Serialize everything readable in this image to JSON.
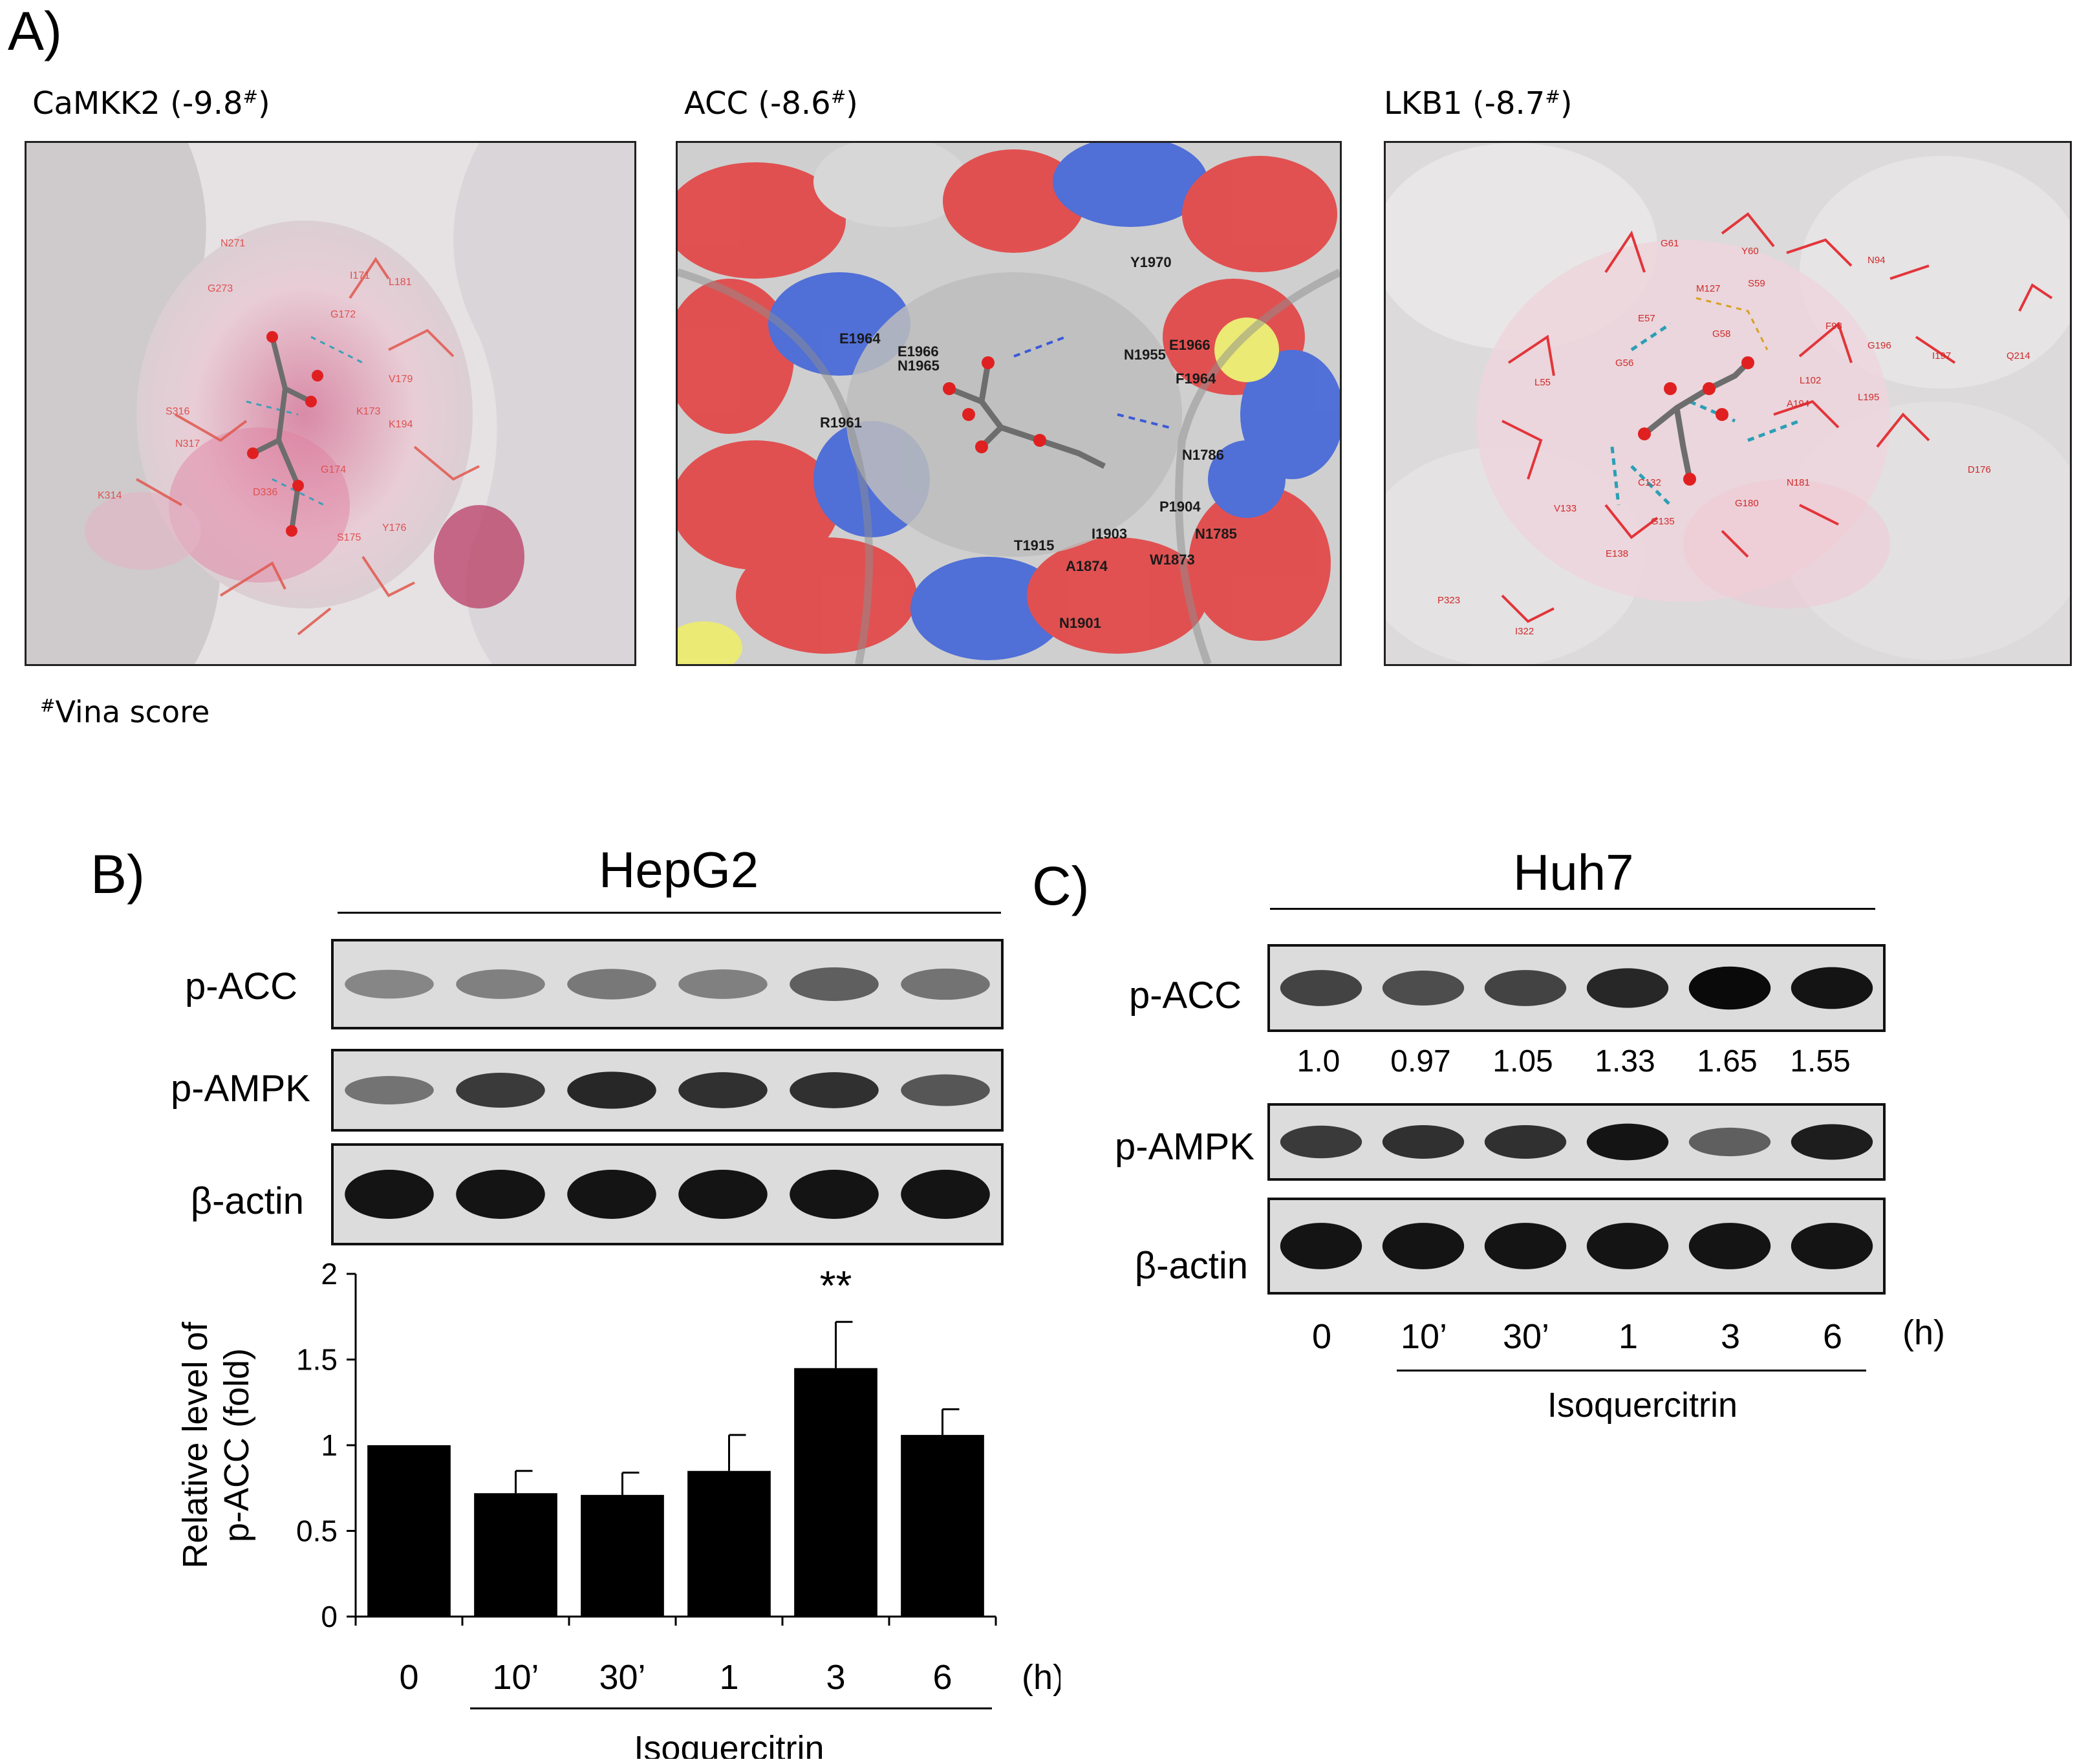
{
  "figure": {
    "panel_a": {
      "letter": "A)",
      "docks": [
        {
          "name": "CaMKK2",
          "score": "(-9.8",
          "mark": "#",
          "close": ")",
          "residues": [
            "N271",
            "G273",
            "I171",
            "L181",
            "G172",
            "V179",
            "S316",
            "K173",
            "K194",
            "N317",
            "G174",
            "K314",
            "D336",
            "S175",
            "Y176"
          ]
        },
        {
          "name": "ACC",
          "score": "(-8.6",
          "mark": "#",
          "close": ")",
          "residues": [
            "Y1970",
            "E1964",
            "E1966",
            "N1965",
            "N1955",
            "E1966",
            "F1964",
            "R1961",
            "N1786",
            "P1904",
            "I1903",
            "N1785",
            "T1915",
            "A1874",
            "W1873",
            "N1901"
          ]
        },
        {
          "name": "LKB1",
          "score": "(-8.7",
          "mark": "#",
          "close": ")",
          "residues": [
            "G61",
            "Y60",
            "N94",
            "S59",
            "M127",
            "E57",
            "G58",
            "F98",
            "G196",
            "I197",
            "Q214",
            "L55",
            "G56",
            "L102",
            "A194",
            "L195",
            "D176",
            "C132",
            "N181",
            "V133",
            "G180",
            "E138",
            "G135",
            "P323",
            "I322"
          ]
        }
      ],
      "footnote_mark": "#",
      "footnote_text": "Vina score"
    },
    "panel_b": {
      "letter": "B)",
      "cell_line": "HepG2",
      "blots": [
        {
          "label": "p-ACC",
          "intensity": [
            0.35,
            0.38,
            0.42,
            0.38,
            0.55,
            0.45
          ]
        },
        {
          "label": "p-AMPK",
          "intensity": [
            0.45,
            0.75,
            0.85,
            0.8,
            0.8,
            0.6
          ]
        },
        {
          "label": "β-actin",
          "intensity": [
            0.95,
            0.95,
            0.95,
            0.95,
            0.95,
            0.95
          ]
        }
      ],
      "lanes": [
        "0",
        "10’",
        "30’",
        "1",
        "3",
        "6"
      ],
      "unit": "(h)",
      "treatment": "Isoquercitrin"
    },
    "panel_c": {
      "letter": "C)",
      "cell_line": "Huh7",
      "blots": [
        {
          "label": "p-ACC",
          "intensity": [
            0.7,
            0.65,
            0.7,
            0.85,
            1.0,
            0.95
          ]
        },
        {
          "label": "p-AMPK",
          "intensity": [
            0.75,
            0.8,
            0.8,
            0.95,
            0.55,
            0.9
          ]
        },
        {
          "label": "β-actin",
          "intensity": [
            0.95,
            0.95,
            0.95,
            0.95,
            0.95,
            0.95
          ]
        }
      ],
      "ratios": [
        "1.0",
        "0.97",
        "1.05",
        "1.33",
        "1.65",
        "1.55"
      ],
      "lanes": [
        "0",
        "10’",
        "30’",
        "1",
        "3",
        "6"
      ],
      "unit": "(h)",
      "treatment": "Isoquercitrin"
    }
  },
  "chart_data": {
    "type": "bar",
    "categories": [
      "0",
      "10’",
      "30’",
      "1",
      "3",
      "6"
    ],
    "values": [
      1.0,
      0.72,
      0.71,
      0.85,
      1.45,
      1.06
    ],
    "errors": [
      0.0,
      0.13,
      0.13,
      0.21,
      0.27,
      0.15
    ],
    "significance": [
      "",
      "",
      "",
      "",
      "**",
      ""
    ],
    "ylabel_line1": "Relative level of",
    "ylabel_line2": "p-ACC (fold)",
    "yticks": [
      "0",
      "0.5",
      "1",
      "1.5",
      "2"
    ],
    "ylim": [
      0,
      2
    ],
    "unit": "(h)",
    "treatment": "Isoquercitrin",
    "bar_color": "#000000"
  }
}
